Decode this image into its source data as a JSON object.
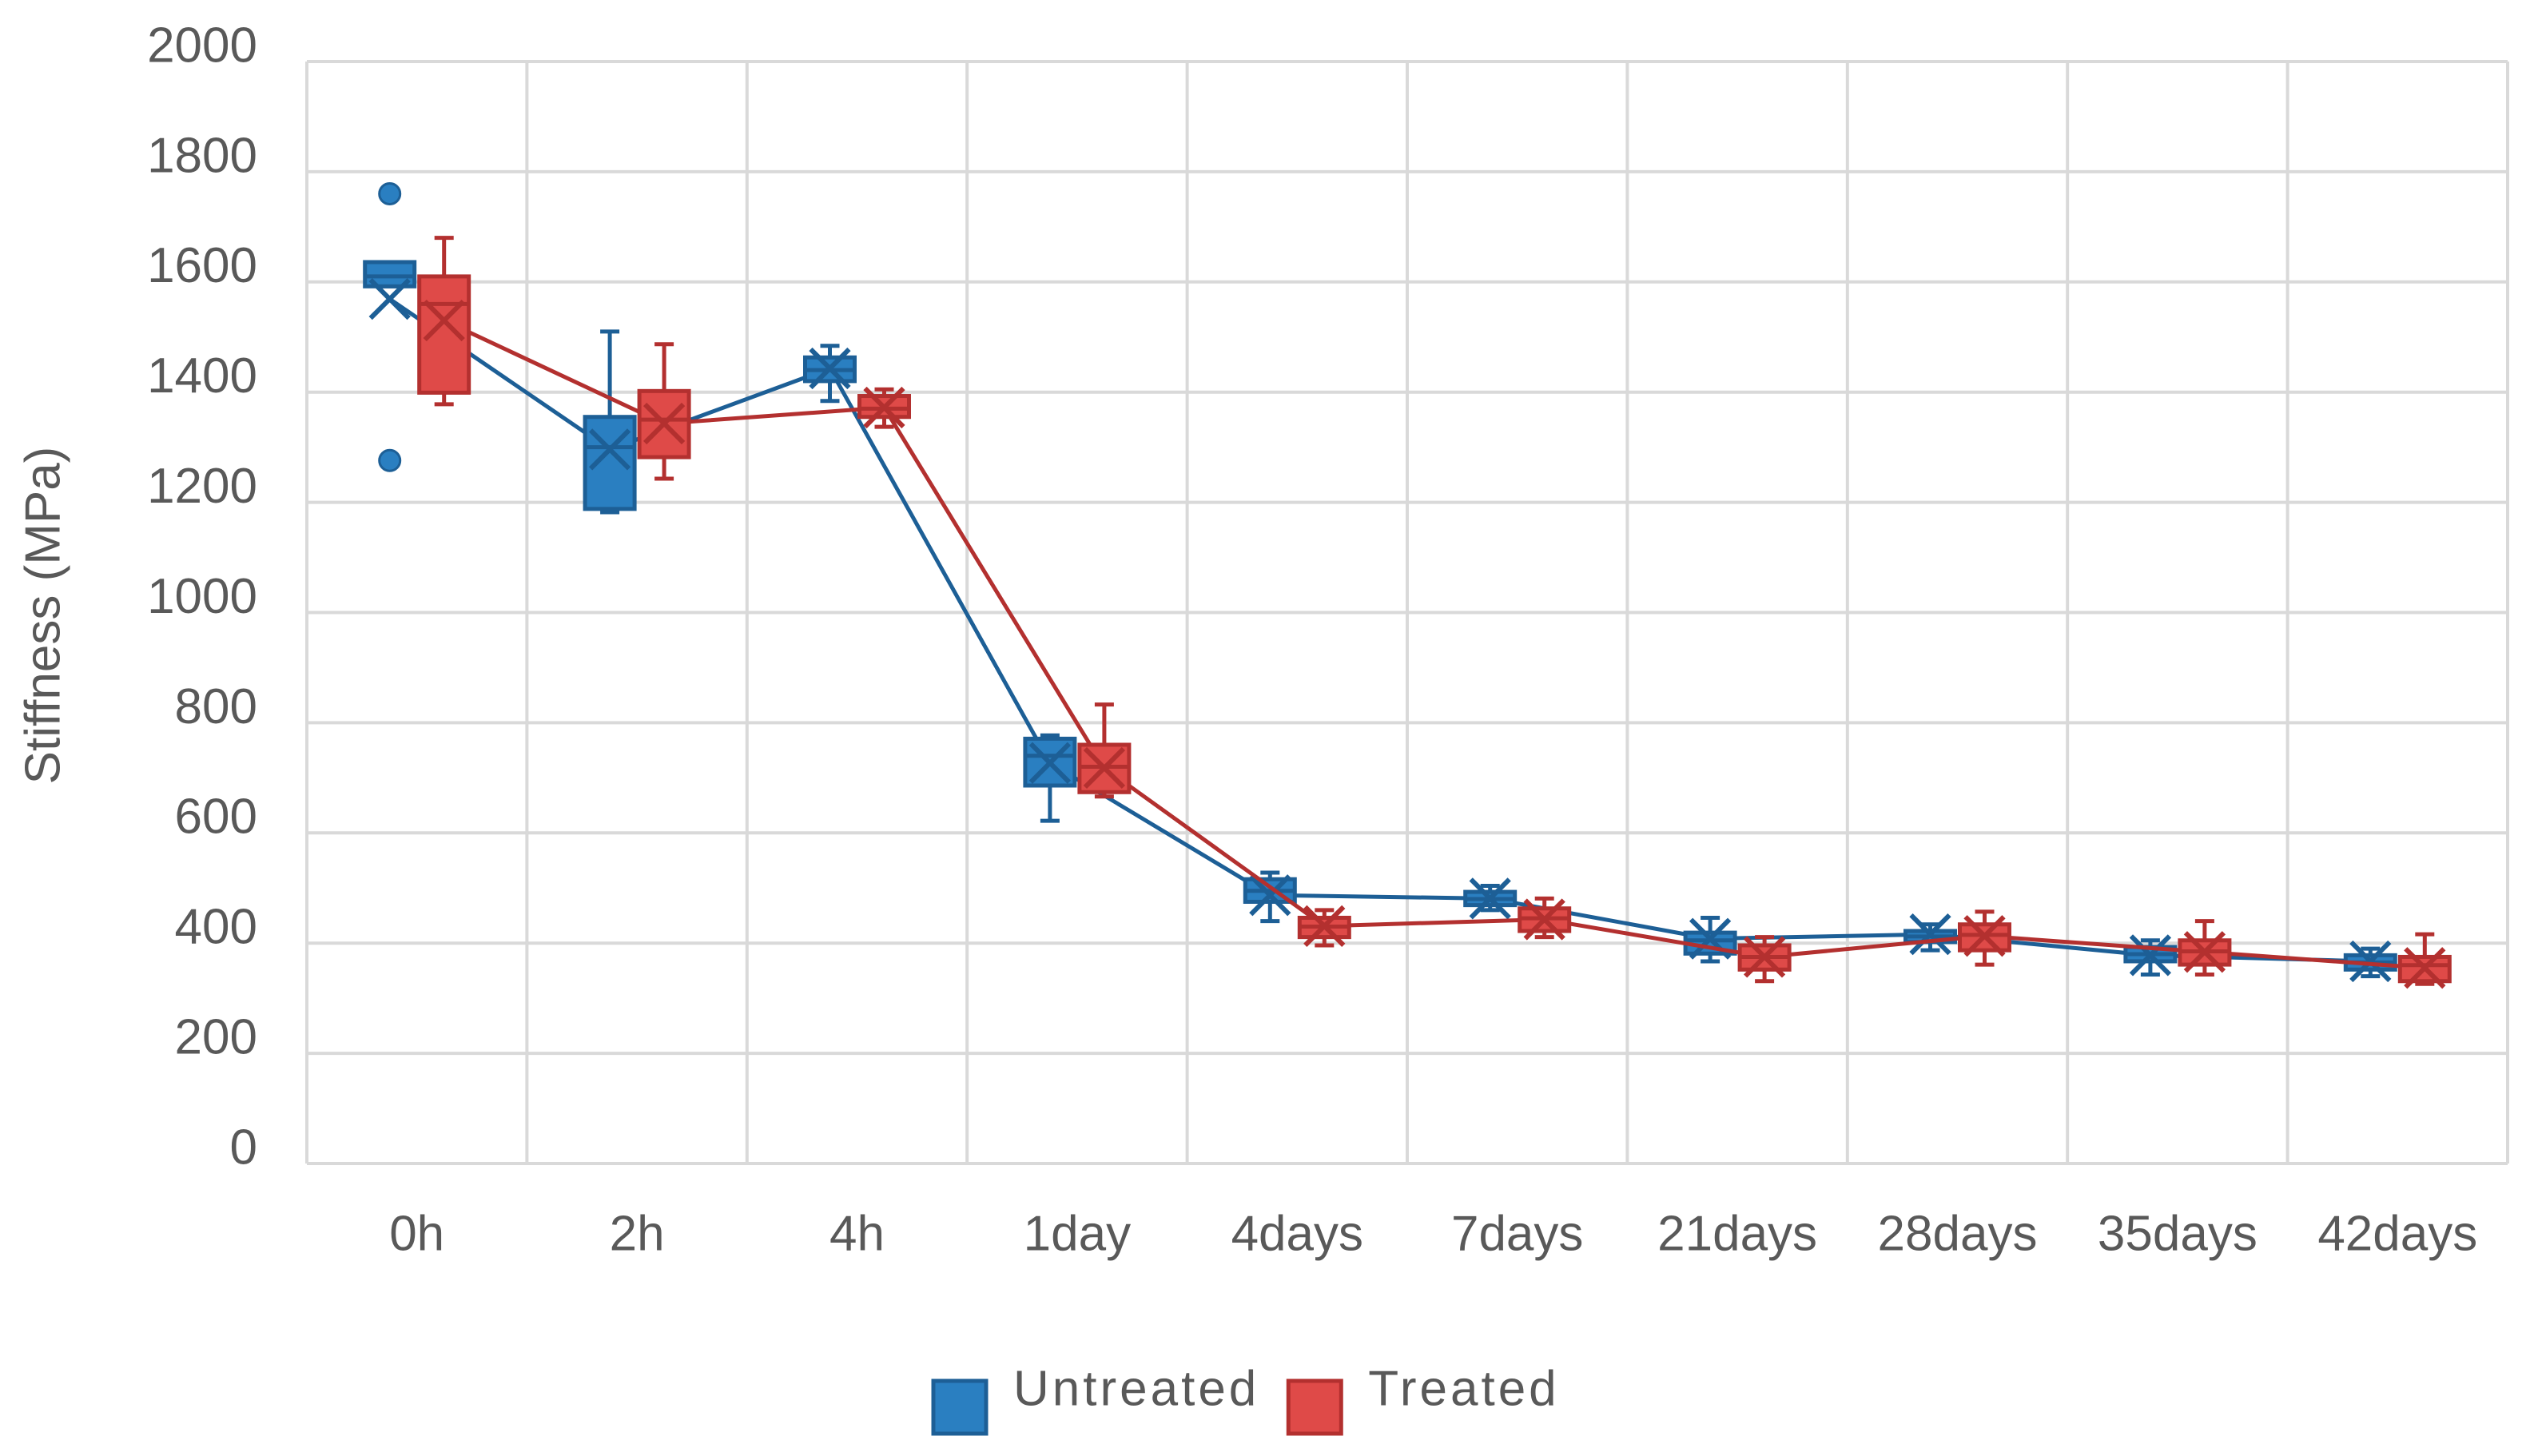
{
  "chart_data": {
    "type": "box",
    "y_label": "Stiffness (MPa)",
    "categories": [
      "0h",
      "2h",
      "4h",
      "1day",
      "4days",
      "7days",
      "21days",
      "28days",
      "35days",
      "42days"
    ],
    "ylim": [
      0,
      2000
    ],
    "yticks": [
      0,
      200,
      400,
      600,
      800,
      1000,
      1200,
      1400,
      1600,
      1800,
      2000
    ],
    "grid": true,
    "legend": "bottom",
    "series": [
      {
        "name": "Untreated",
        "color": "#2a7fc1",
        "edge_color": "#1d5f96",
        "min": [
          1592,
          1182,
          1384,
          622,
          440,
          460,
          367,
          387,
          343,
          340
        ],
        "q1": [
          1592,
          1188,
          1420,
          686,
          475,
          469,
          381,
          402,
          367,
          352
        ],
        "median": [
          1610,
          1300,
          1440,
          740,
          495,
          480,
          405,
          412,
          380,
          365
        ],
        "q3": [
          1636,
          1355,
          1463,
          771,
          516,
          493,
          419,
          422,
          393,
          378
        ],
        "max": [
          1636,
          1510,
          1484,
          777,
          528,
          504,
          446,
          434,
          405,
          390
        ],
        "mean": [
          1569,
          1296,
          1443,
          727,
          487,
          481,
          408,
          416,
          378,
          367
        ],
        "outliers": [
          [
            1760,
            1276
          ],
          [],
          [],
          [],
          [],
          [],
          [],
          [],
          [],
          []
        ]
      },
      {
        "name": "Treated",
        "color": "#df4a48",
        "edge_color": "#b3302f",
        "min": [
          1378,
          1243,
          1337,
          666,
          396,
          411,
          331,
          361,
          343,
          326
        ],
        "q1": [
          1399,
          1282,
          1355,
          674,
          411,
          422,
          352,
          387,
          361,
          331
        ],
        "median": [
          1560,
          1350,
          1370,
          720,
          430,
          445,
          375,
          415,
          385,
          360
        ],
        "q3": [
          1610,
          1402,
          1393,
          760,
          446,
          463,
          396,
          434,
          405,
          375
        ],
        "max": [
          1680,
          1487,
          1405,
          833,
          460,
          481,
          411,
          457,
          440,
          416
        ],
        "mean": [
          1530,
          1343,
          1372,
          718,
          431,
          443,
          375,
          413,
          384,
          355
        ],
        "outliers": [
          [],
          [],
          [],
          [],
          [],
          [],
          [],
          [],
          [],
          []
        ]
      }
    ]
  }
}
